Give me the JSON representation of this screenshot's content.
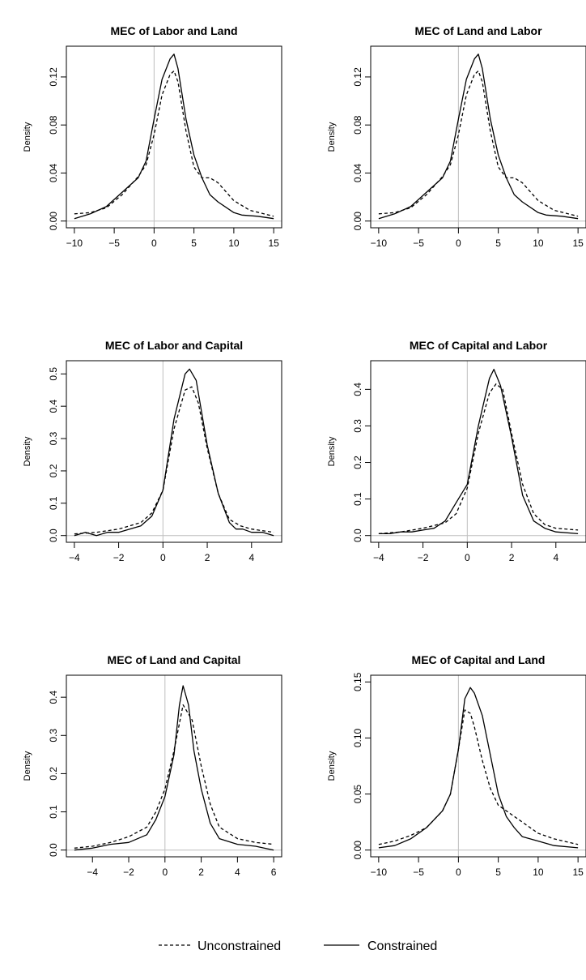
{
  "chart_data": [
    {
      "type": "line",
      "title": "MEC of Labor and Land",
      "ylabel": "Density",
      "xlim": [
        -10,
        15
      ],
      "ylim": [
        0,
        0.14
      ],
      "xticks": [
        "−10",
        "−5",
        "0",
        "5",
        "10",
        "15"
      ],
      "yticks": [
        "0.00",
        "0.04",
        "0.08",
        "0.12"
      ],
      "vline_x": 0,
      "series": [
        {
          "name": "Unconstrained",
          "x": [
            -10,
            -8,
            -6,
            -4,
            -2,
            -1,
            0,
            1,
            2,
            2.5,
            3,
            4,
            5,
            6,
            7,
            8,
            10,
            12,
            15
          ],
          "y": [
            0.006,
            0.007,
            0.011,
            0.022,
            0.037,
            0.047,
            0.072,
            0.105,
            0.122,
            0.125,
            0.116,
            0.075,
            0.045,
            0.036,
            0.036,
            0.032,
            0.017,
            0.009,
            0.004
          ]
        },
        {
          "name": "Constrained",
          "x": [
            -10,
            -8,
            -6,
            -4,
            -2,
            -1,
            0,
            1,
            2,
            2.5,
            3,
            4,
            5,
            6,
            7,
            8,
            10,
            11,
            13,
            15
          ],
          "y": [
            0.002,
            0.006,
            0.012,
            0.024,
            0.036,
            0.05,
            0.085,
            0.118,
            0.135,
            0.139,
            0.127,
            0.085,
            0.055,
            0.036,
            0.022,
            0.016,
            0.007,
            0.005,
            0.004,
            0.002
          ]
        }
      ]
    },
    {
      "type": "line",
      "title": "MEC of Land and Labor",
      "ylabel": "Density",
      "xlim": [
        -10,
        15
      ],
      "ylim": [
        0,
        0.14
      ],
      "xticks": [
        "−10",
        "−5",
        "0",
        "5",
        "10",
        "15"
      ],
      "yticks": [
        "0.00",
        "0.04",
        "0.08",
        "0.12"
      ],
      "vline_x": 0,
      "series": [
        {
          "name": "Unconstrained",
          "x": [
            -10,
            -8,
            -6,
            -4,
            -2,
            -1,
            0,
            1,
            2,
            2.5,
            3,
            4,
            5,
            6,
            7,
            8,
            10,
            12,
            15
          ],
          "y": [
            0.006,
            0.007,
            0.011,
            0.022,
            0.037,
            0.047,
            0.072,
            0.105,
            0.122,
            0.125,
            0.116,
            0.075,
            0.045,
            0.036,
            0.036,
            0.032,
            0.017,
            0.009,
            0.004
          ]
        },
        {
          "name": "Constrained",
          "x": [
            -10,
            -8,
            -6,
            -4,
            -2,
            -1,
            0,
            1,
            2,
            2.5,
            3,
            4,
            5,
            6,
            7,
            8,
            10,
            11,
            13,
            15
          ],
          "y": [
            0.002,
            0.006,
            0.012,
            0.024,
            0.036,
            0.05,
            0.085,
            0.118,
            0.135,
            0.139,
            0.127,
            0.085,
            0.055,
            0.036,
            0.022,
            0.016,
            0.007,
            0.005,
            0.004,
            0.002
          ]
        }
      ]
    },
    {
      "type": "line",
      "title": "MEC of Labor and Capital",
      "ylabel": "Density",
      "xlim": [
        -4,
        5
      ],
      "ylim": [
        0,
        0.52
      ],
      "xticks": [
        "−4",
        "−2",
        "0",
        "2",
        "4"
      ],
      "yticks": [
        "0.0",
        "0.1",
        "0.2",
        "0.3",
        "0.4",
        "0.5"
      ],
      "vline_x": 0,
      "series": [
        {
          "name": "Unconstrained",
          "x": [
            -4,
            -3,
            -2,
            -1,
            -0.5,
            0,
            0.5,
            1,
            1.3,
            1.6,
            2,
            2.5,
            3,
            3.5,
            4,
            5
          ],
          "y": [
            0.005,
            0.01,
            0.02,
            0.04,
            0.07,
            0.14,
            0.33,
            0.45,
            0.46,
            0.41,
            0.27,
            0.13,
            0.05,
            0.03,
            0.02,
            0.01
          ]
        },
        {
          "name": "Constrained",
          "x": [
            -4,
            -3.5,
            -3,
            -2.5,
            -2,
            -1.5,
            -1,
            -0.5,
            0,
            0.5,
            1,
            1.2,
            1.5,
            2,
            2.5,
            3,
            3.3,
            3.6,
            4,
            4.5,
            5
          ],
          "y": [
            0.0,
            0.01,
            0.0,
            0.01,
            0.01,
            0.02,
            0.03,
            0.06,
            0.14,
            0.36,
            0.5,
            0.515,
            0.48,
            0.28,
            0.13,
            0.04,
            0.02,
            0.02,
            0.01,
            0.01,
            0.0
          ]
        }
      ]
    },
    {
      "type": "line",
      "title": "MEC of Capital and Labor",
      "ylabel": "Density",
      "xlim": [
        -4,
        5
      ],
      "ylim": [
        0,
        0.46
      ],
      "xticks": [
        "−4",
        "−2",
        "0",
        "2",
        "4"
      ],
      "yticks": [
        "0.0",
        "0.1",
        "0.2",
        "0.3",
        "0.4"
      ],
      "vline_x": 0,
      "series": [
        {
          "name": "Unconstrained",
          "x": [
            -4,
            -3,
            -2,
            -1,
            -0.5,
            0,
            0.5,
            1,
            1.3,
            1.6,
            2,
            2.5,
            3,
            3.5,
            4,
            5
          ],
          "y": [
            0.005,
            0.01,
            0.02,
            0.035,
            0.06,
            0.13,
            0.28,
            0.39,
            0.415,
            0.4,
            0.28,
            0.14,
            0.06,
            0.03,
            0.02,
            0.015
          ]
        },
        {
          "name": "Constrained",
          "x": [
            -4,
            -3.5,
            -3,
            -2.5,
            -2,
            -1.5,
            -1,
            -0.5,
            -0.2,
            0,
            0.5,
            1,
            1.2,
            1.5,
            2,
            2.5,
            3,
            3.5,
            4,
            5
          ],
          "y": [
            0.005,
            0.005,
            0.01,
            0.01,
            0.015,
            0.02,
            0.04,
            0.09,
            0.12,
            0.14,
            0.3,
            0.43,
            0.455,
            0.41,
            0.27,
            0.11,
            0.04,
            0.02,
            0.01,
            0.005
          ]
        }
      ]
    },
    {
      "type": "line",
      "title": "MEC of Land and Capital",
      "ylabel": "Density",
      "xlim": [
        -5,
        6
      ],
      "ylim": [
        0,
        0.44
      ],
      "xticks": [
        "−4",
        "−2",
        "0",
        "2",
        "4",
        "6"
      ],
      "yticks": [
        "0.0",
        "0.1",
        "0.2",
        "0.3",
        "0.4"
      ],
      "vline_x": 0,
      "series": [
        {
          "name": "Unconstrained",
          "x": [
            -5,
            -4,
            -3,
            -2,
            -1,
            -0.5,
            0,
            0.5,
            1,
            1.5,
            2,
            2.5,
            3,
            4,
            5,
            6
          ],
          "y": [
            0.005,
            0.01,
            0.02,
            0.035,
            0.06,
            0.1,
            0.16,
            0.26,
            0.38,
            0.34,
            0.22,
            0.12,
            0.06,
            0.03,
            0.02,
            0.015
          ]
        },
        {
          "name": "Constrained",
          "x": [
            -5,
            -4,
            -3,
            -2,
            -1,
            -0.5,
            0,
            0.5,
            0.8,
            1,
            1.3,
            1.6,
            2,
            2.5,
            3,
            4,
            5,
            6
          ],
          "y": [
            0.0,
            0.005,
            0.015,
            0.02,
            0.04,
            0.08,
            0.14,
            0.25,
            0.38,
            0.43,
            0.38,
            0.26,
            0.16,
            0.07,
            0.03,
            0.015,
            0.01,
            0.0
          ]
        }
      ]
    },
    {
      "type": "line",
      "title": "MEC of Capital and Land",
      "ylabel": "Density",
      "xlim": [
        -10,
        15
      ],
      "ylim": [
        0,
        0.15
      ],
      "xticks": [
        "−10",
        "−5",
        "0",
        "5",
        "10",
        "15"
      ],
      "yticks": [
        "0.00",
        "0.05",
        "0.10",
        "0.15"
      ],
      "vline_x": 0,
      "series": [
        {
          "name": "Unconstrained",
          "x": [
            -10,
            -8,
            -6,
            -4,
            -2,
            -1,
            0,
            0.8,
            1.5,
            2,
            3,
            4,
            5,
            6,
            8,
            10,
            12,
            15
          ],
          "y": [
            0.005,
            0.008,
            0.013,
            0.02,
            0.035,
            0.05,
            0.09,
            0.125,
            0.122,
            0.11,
            0.08,
            0.055,
            0.04,
            0.035,
            0.025,
            0.015,
            0.01,
            0.005
          ]
        },
        {
          "name": "Constrained",
          "x": [
            -10,
            -8,
            -6,
            -4,
            -2,
            -1,
            0,
            0.8,
            1.5,
            2,
            3,
            4,
            5,
            6,
            7,
            8,
            10,
            12,
            15
          ],
          "y": [
            0.002,
            0.004,
            0.01,
            0.02,
            0.035,
            0.05,
            0.09,
            0.135,
            0.145,
            0.14,
            0.12,
            0.085,
            0.05,
            0.03,
            0.02,
            0.012,
            0.008,
            0.004,
            0.002
          ]
        }
      ]
    }
  ],
  "legend": {
    "placement": "bottom-center",
    "items": [
      {
        "label": "Unconstrained",
        "style": "dashed"
      },
      {
        "label": "Constrained",
        "style": "solid"
      }
    ]
  },
  "colors": {
    "line": "#000000",
    "vline": "#bebebe",
    "axis": "#000000"
  }
}
